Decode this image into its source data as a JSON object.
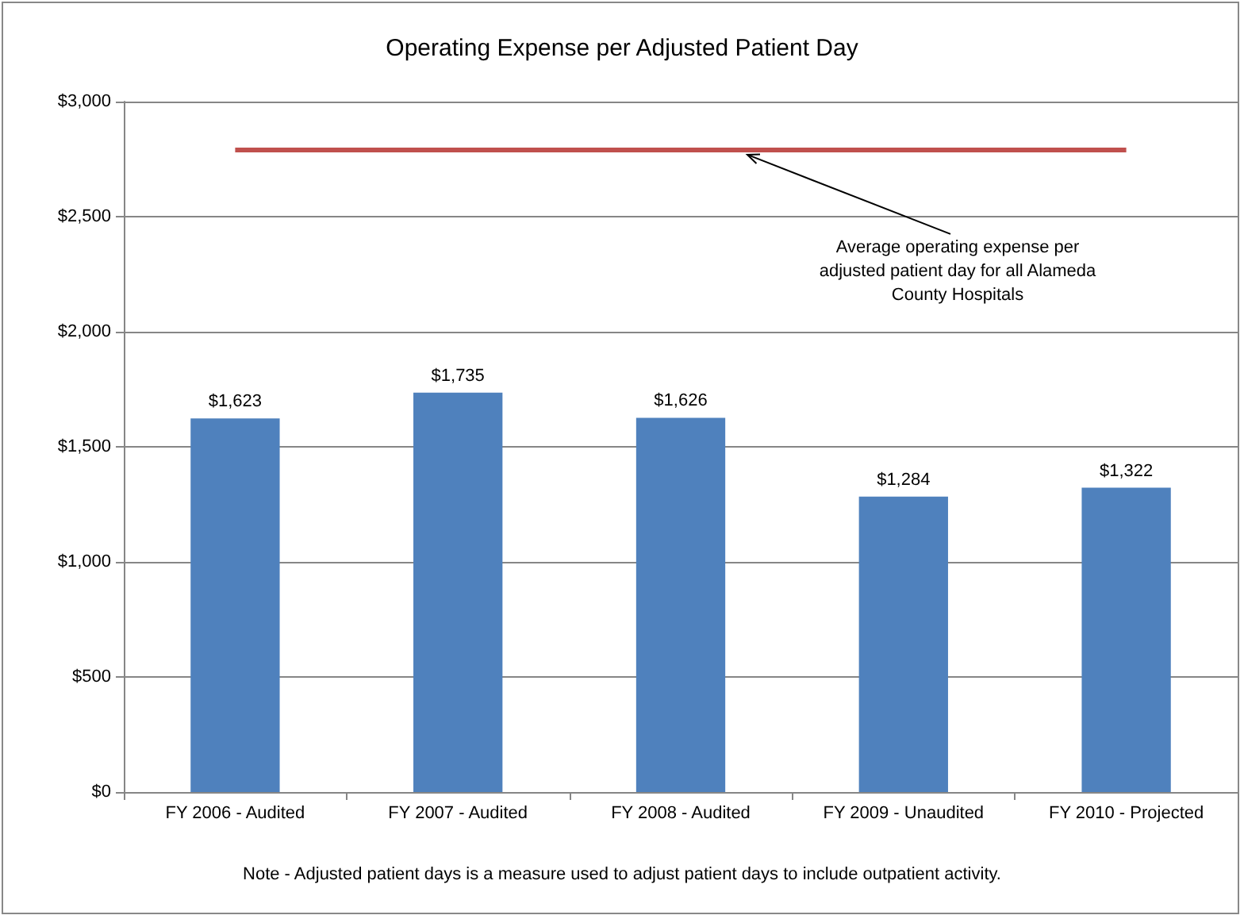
{
  "chart_data": {
    "type": "bar",
    "title": "Operating Expense per Adjusted Patient Day",
    "categories": [
      "FY 2006 - Audited",
      "FY 2007 - Audited",
      "FY 2008 - Audited",
      "FY 2009 - Unaudited",
      "FY 2010 - Projected"
    ],
    "values": [
      1623,
      1735,
      1626,
      1284,
      1322
    ],
    "color": "#4f81bd",
    "value_labels": [
      "$1,623",
      "$1,735",
      "$1,626",
      "$1,284",
      "$1,322"
    ],
    "ylim": [
      0,
      3000
    ],
    "yticks": [
      {
        "value": 0,
        "label": "$0"
      },
      {
        "value": 500,
        "label": "$500"
      },
      {
        "value": 1000,
        "label": "$1,000"
      },
      {
        "value": 1500,
        "label": "$1,500"
      },
      {
        "value": 2000,
        "label": "$2,000"
      },
      {
        "value": 2500,
        "label": "$2,500"
      },
      {
        "value": 3000,
        "label": "$3,000"
      }
    ],
    "grid": "y",
    "ref_lines": [
      {
        "axis": "y",
        "value": 2790,
        "label": "Average operating expense per adjusted patient day for all Alameda County Hospitals",
        "color": "#c0504d"
      }
    ],
    "annotations": [
      "Note - Adjusted patient days is a measure used to adjust patient days to include outpatient activity."
    ]
  }
}
